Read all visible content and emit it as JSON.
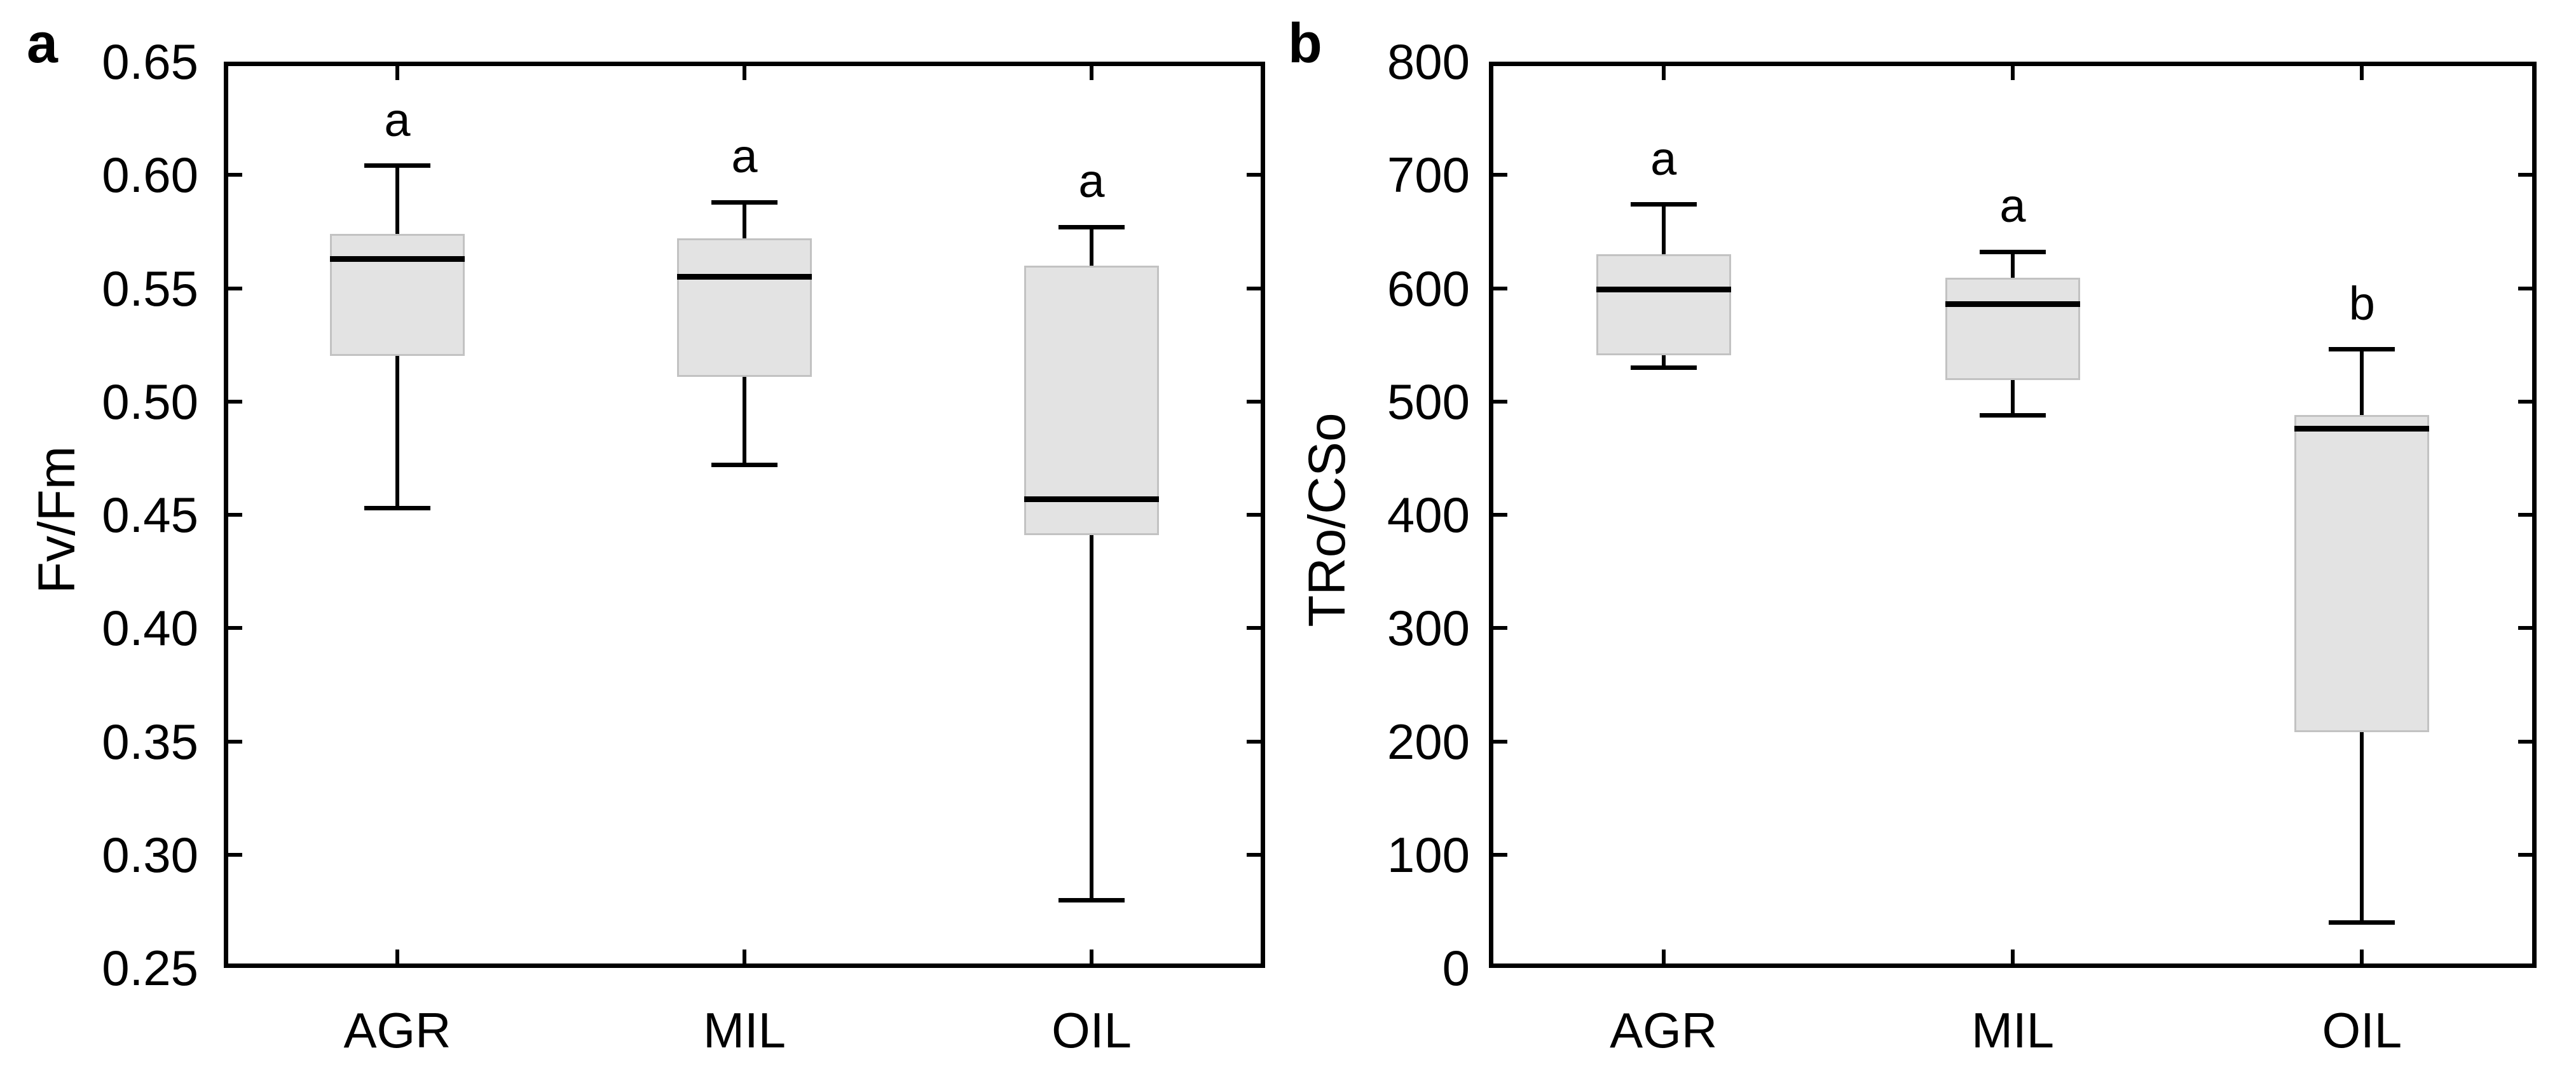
{
  "figure": {
    "background": "#ffffff",
    "line_color": "#000000",
    "box_fill": "#e3e3e3",
    "box_border": "#c2c2c2"
  },
  "chart_data": [
    {
      "type": "box",
      "panel_label": "a",
      "ylabel": "Fv/Fm",
      "xlabel": "",
      "ylim": [
        0.25,
        0.65
      ],
      "grid": false,
      "legend": "none",
      "ytick_values": [
        0.65,
        0.6,
        0.55,
        0.5,
        0.45,
        0.4,
        0.35,
        0.3,
        0.25
      ],
      "ytick_labels": [
        "0.65",
        "0.60",
        "0.55",
        "0.50",
        "0.45",
        "0.40",
        "0.35",
        "0.30",
        "0.25"
      ],
      "categories": [
        "AGR",
        "MIL",
        "OIL"
      ],
      "series": [
        {
          "category": "AGR",
          "whisker_low": 0.453,
          "q1": 0.52,
          "median": 0.563,
          "q3": 0.574,
          "whisker_high": 0.604,
          "sig_letter": "a"
        },
        {
          "category": "MIL",
          "whisker_low": 0.472,
          "q1": 0.511,
          "median": 0.555,
          "q3": 0.572,
          "whisker_high": 0.588,
          "sig_letter": "a"
        },
        {
          "category": "OIL",
          "whisker_low": 0.28,
          "q1": 0.441,
          "median": 0.457,
          "q3": 0.56,
          "whisker_high": 0.577,
          "sig_letter": "a"
        }
      ]
    },
    {
      "type": "box",
      "panel_label": "b",
      "ylabel": "TRo/CSo",
      "xlabel": "",
      "ylim": [
        0,
        800
      ],
      "grid": false,
      "legend": "none",
      "ytick_values": [
        800,
        700,
        600,
        500,
        400,
        300,
        200,
        100,
        0
      ],
      "ytick_labels": [
        "800",
        "700",
        "600",
        "500",
        "400",
        "300",
        "200",
        "100",
        "0"
      ],
      "categories": [
        "AGR",
        "MIL",
        "OIL"
      ],
      "series": [
        {
          "category": "AGR",
          "whisker_low": 530,
          "q1": 541,
          "median": 599,
          "q3": 630,
          "whisker_high": 674,
          "sig_letter": "a"
        },
        {
          "category": "MIL",
          "whisker_low": 488,
          "q1": 519,
          "median": 586,
          "q3": 609,
          "whisker_high": 632,
          "sig_letter": "a"
        },
        {
          "category": "OIL",
          "whisker_low": 40,
          "q1": 208,
          "median": 476,
          "q3": 488,
          "whisker_high": 546,
          "sig_letter": "b"
        }
      ]
    }
  ]
}
